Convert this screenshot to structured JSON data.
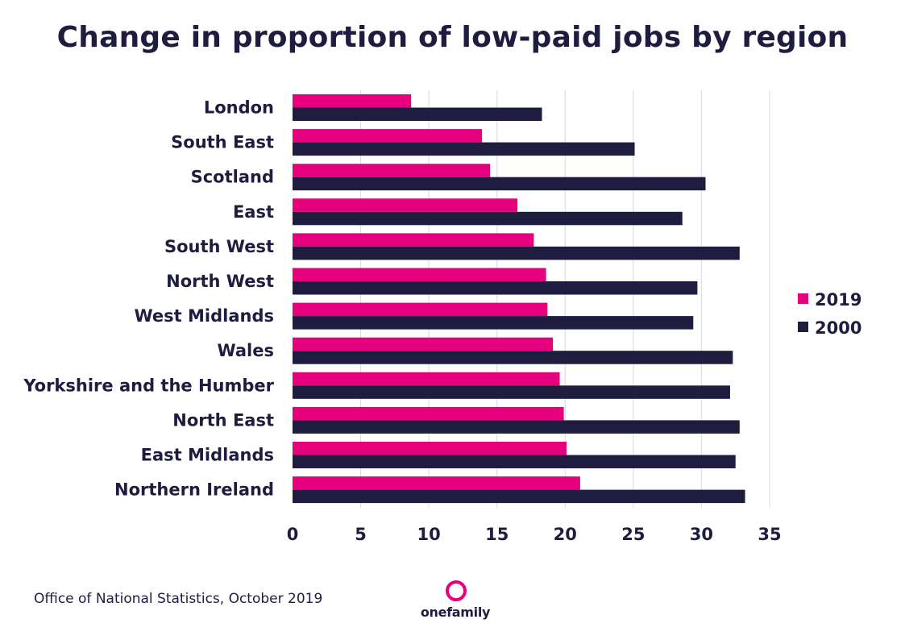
{
  "colors": {
    "series_2019": "#e6007e",
    "series_2000": "#1f1d3f",
    "grid": "#d9d9e6",
    "text": "#1f1d3f"
  },
  "chart_data": {
    "type": "bar",
    "orientation": "horizontal",
    "title": "Change in proportion of low-paid jobs by region",
    "xlabel": "",
    "ylabel": "",
    "xlim": [
      0,
      35
    ],
    "xticks": [
      0,
      5,
      10,
      15,
      20,
      25,
      30,
      35
    ],
    "grid": "vertical",
    "legend_position": "right",
    "categories": [
      "London",
      "South East",
      "Scotland",
      "East",
      "South West",
      "North West",
      "West Midlands",
      "Wales",
      "Yorkshire and the Humber",
      "North East",
      "East Midlands",
      "Northern Ireland"
    ],
    "series": [
      {
        "name": "2019",
        "values": [
          8.7,
          13.9,
          14.5,
          16.5,
          17.7,
          18.6,
          18.7,
          19.1,
          19.6,
          19.9,
          20.1,
          21.1
        ]
      },
      {
        "name": "2000",
        "values": [
          18.3,
          25.1,
          30.3,
          28.6,
          32.8,
          29.7,
          29.4,
          32.3,
          32.1,
          32.8,
          32.5,
          33.2
        ]
      }
    ]
  },
  "footer": {
    "source": "Office of National Statistics, October 2019",
    "brand": "onefamily"
  }
}
